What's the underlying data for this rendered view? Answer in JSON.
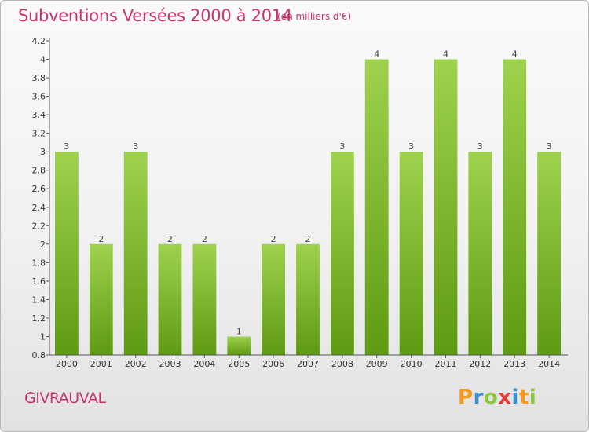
{
  "header": {
    "title": "Subventions Versées 2000 à 2014",
    "unit": "(en milliers d'€)"
  },
  "footer": {
    "commune": "GIVRAUVAL",
    "logo": {
      "letters": [
        "P",
        "r",
        "o",
        "x",
        "i",
        "t",
        "i"
      ],
      "colors": [
        "#f39a1e",
        "#3a8fd0",
        "#8cc63f",
        "#e53935",
        "#3a8fd0",
        "#f39a1e",
        "#8cc63f"
      ]
    }
  },
  "colors": {
    "bar_top": "#9fd24e",
    "bar_bottom": "#5e9a12",
    "title": "#c8336e",
    "axis": "#555555"
  },
  "chart_data": {
    "type": "bar",
    "categories": [
      "2000",
      "2001",
      "2002",
      "2003",
      "2004",
      "2005",
      "2006",
      "2007",
      "2008",
      "2009",
      "2010",
      "2011",
      "2012",
      "2013",
      "2014"
    ],
    "values": [
      3,
      2,
      3,
      2,
      2,
      1,
      2,
      2,
      3,
      4,
      3,
      4,
      3,
      4,
      3
    ],
    "labels": [
      "3",
      "2",
      "3",
      "2",
      "2",
      "1",
      "2",
      "2",
      "3",
      "4",
      "3",
      "4",
      "3",
      "4",
      "3"
    ],
    "title": "Subventions Versées 2000 à 2014",
    "ylim": [
      0.8,
      4.2
    ],
    "yticks": [
      "0.8",
      "1",
      "1.2",
      "1.4",
      "1.6",
      "1.8",
      "2",
      "2.2",
      "2.4",
      "2.6",
      "2.8",
      "3",
      "3.2",
      "3.4",
      "3.6",
      "3.8",
      "4",
      "4.2"
    ],
    "grid": false
  }
}
